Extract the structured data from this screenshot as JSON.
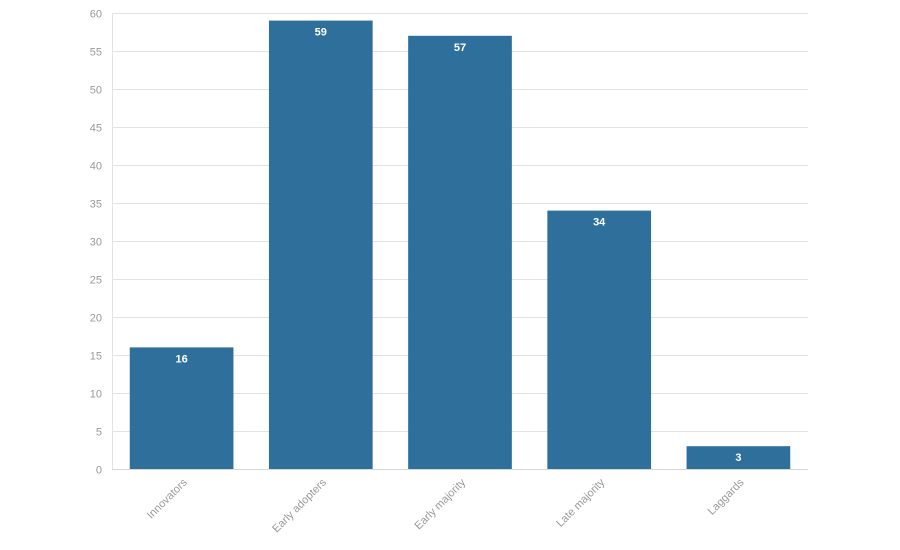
{
  "chart_data": {
    "type": "bar",
    "categories": [
      "Innovators",
      "Early adopters",
      "Early majority",
      "Late majority",
      "Laggards"
    ],
    "values": [
      16,
      59,
      57,
      34,
      3
    ],
    "data_labels": [
      "16",
      "59",
      "57",
      "34",
      "3"
    ],
    "title": "",
    "xlabel": "",
    "ylabel": "",
    "ylim": [
      0,
      60
    ],
    "yticks": [
      0,
      5,
      10,
      15,
      20,
      25,
      30,
      35,
      40,
      45,
      50,
      55,
      60
    ],
    "ytick_labels": [
      "0",
      "5",
      "10",
      "15",
      "20",
      "25",
      "30",
      "35",
      "40",
      "45",
      "50",
      "55",
      "60"
    ],
    "grid": true,
    "legend": "none",
    "colors": {
      "bar": "#2e6f9b",
      "grid": "#e3e3e3",
      "tick_text": "#999999",
      "data_label_text": "#ffffff"
    }
  }
}
